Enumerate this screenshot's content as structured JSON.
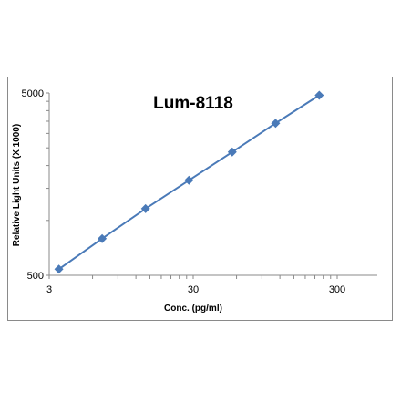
{
  "chart_data": {
    "type": "line",
    "title": "Lum-8118",
    "xlabel": "Conc. (pg/ml)",
    "ylabel": "Relative Light Units (X 1000)",
    "x_scale": "log",
    "y_scale": "log",
    "xlim": [
      3,
      300
    ],
    "ylim": [
      500,
      5000
    ],
    "x_ticks": [
      3,
      30,
      300
    ],
    "x_tick_labels": [
      "3",
      "30",
      "300"
    ],
    "y_ticks": [
      500,
      5000
    ],
    "y_tick_labels": [
      "500",
      "5000"
    ],
    "grid": false,
    "legend": "none",
    "series": [
      {
        "color": "#4a7ab8",
        "marker": "diamond",
        "x": [
          3.5,
          7,
          14,
          28,
          56,
          112,
          225
        ],
        "y": [
          540,
          795,
          1160,
          1660,
          2370,
          3410,
          4860
        ]
      }
    ]
  }
}
